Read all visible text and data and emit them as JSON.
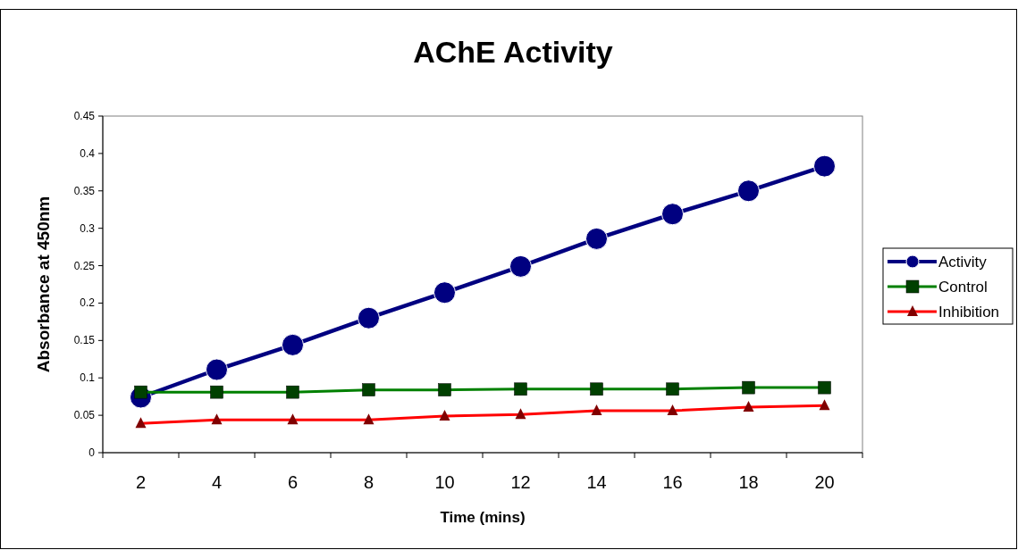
{
  "chart_data": {
    "type": "line",
    "title": "AChE Activity",
    "xlabel": "Time (mins)",
    "ylabel": "Absorbance at 450nm",
    "categories": [
      "2",
      "4",
      "6",
      "8",
      "10",
      "12",
      "14",
      "16",
      "18",
      "20"
    ],
    "ylim": [
      0,
      0.45
    ],
    "yticks": [
      0,
      0.05,
      0.1,
      0.15,
      0.2,
      0.25,
      0.3,
      0.35,
      0.4,
      0.45
    ],
    "grid": false,
    "legend": "right",
    "series": [
      {
        "name": "Activity",
        "color": "#000080",
        "marker": "circle",
        "values": [
          0.074,
          0.111,
          0.144,
          0.18,
          0.214,
          0.249,
          0.286,
          0.319,
          0.35,
          0.383
        ]
      },
      {
        "name": "Control",
        "color": "#008000",
        "marker": "square",
        "values": [
          0.081,
          0.081,
          0.081,
          0.084,
          0.084,
          0.085,
          0.085,
          0.085,
          0.087,
          0.087
        ]
      },
      {
        "name": "Inhibition",
        "color": "#ff0000",
        "marker": "triangle",
        "values": [
          0.039,
          0.044,
          0.044,
          0.044,
          0.049,
          0.051,
          0.056,
          0.056,
          0.061,
          0.063
        ]
      }
    ]
  }
}
